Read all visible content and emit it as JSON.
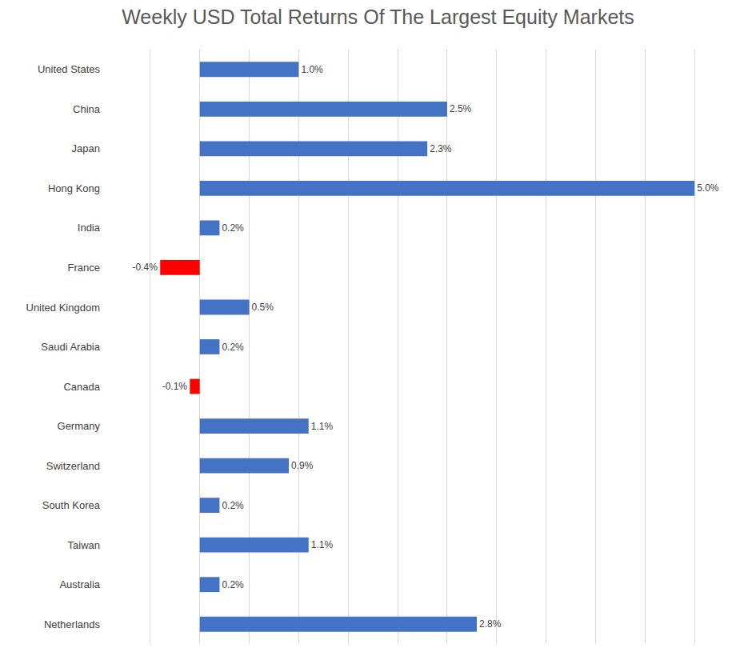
{
  "chart_data": {
    "type": "bar",
    "title": "Weekly USD Total Returns Of The Largest Equity Markets",
    "orientation": "horizontal",
    "categories": [
      "United States",
      "China",
      "Japan",
      "Hong Kong",
      "India",
      "France",
      "United Kingdom",
      "Saudi Arabia",
      "Canada",
      "Germany",
      "Switzerland",
      "South Korea",
      "Taiwan",
      "Australia",
      "Netherlands"
    ],
    "values": [
      1.0,
      2.5,
      2.3,
      5.0,
      0.2,
      -0.4,
      0.5,
      0.2,
      -0.1,
      1.1,
      0.9,
      0.2,
      1.1,
      0.2,
      2.8
    ],
    "value_labels": [
      "1.0%",
      "2.5%",
      "2.3%",
      "5.0%",
      "0.2%",
      "-0.4%",
      "0.5%",
      "0.2%",
      "-0.1%",
      "1.1%",
      "0.9%",
      "0.2%",
      "1.1%",
      "0.2%",
      "2.8%"
    ],
    "colors": [
      "#4472c4",
      "#4472c4",
      "#4472c4",
      "#4472c4",
      "#4472c4",
      "#ff0000",
      "#4472c4",
      "#4472c4",
      "#ff0000",
      "#4472c4",
      "#4472c4",
      "#4472c4",
      "#4472c4",
      "#4472c4",
      "#4472c4"
    ],
    "data_labels": true,
    "xlim": [
      -1.0,
      5.5
    ],
    "xticks": [
      -1.0,
      -0.5,
      0,
      0.5,
      1.0,
      1.5,
      2.0,
      2.5,
      3.0,
      3.5,
      4.0,
      4.5,
      5.0,
      5.5
    ],
    "grid": true,
    "tick_labels": "y"
  }
}
